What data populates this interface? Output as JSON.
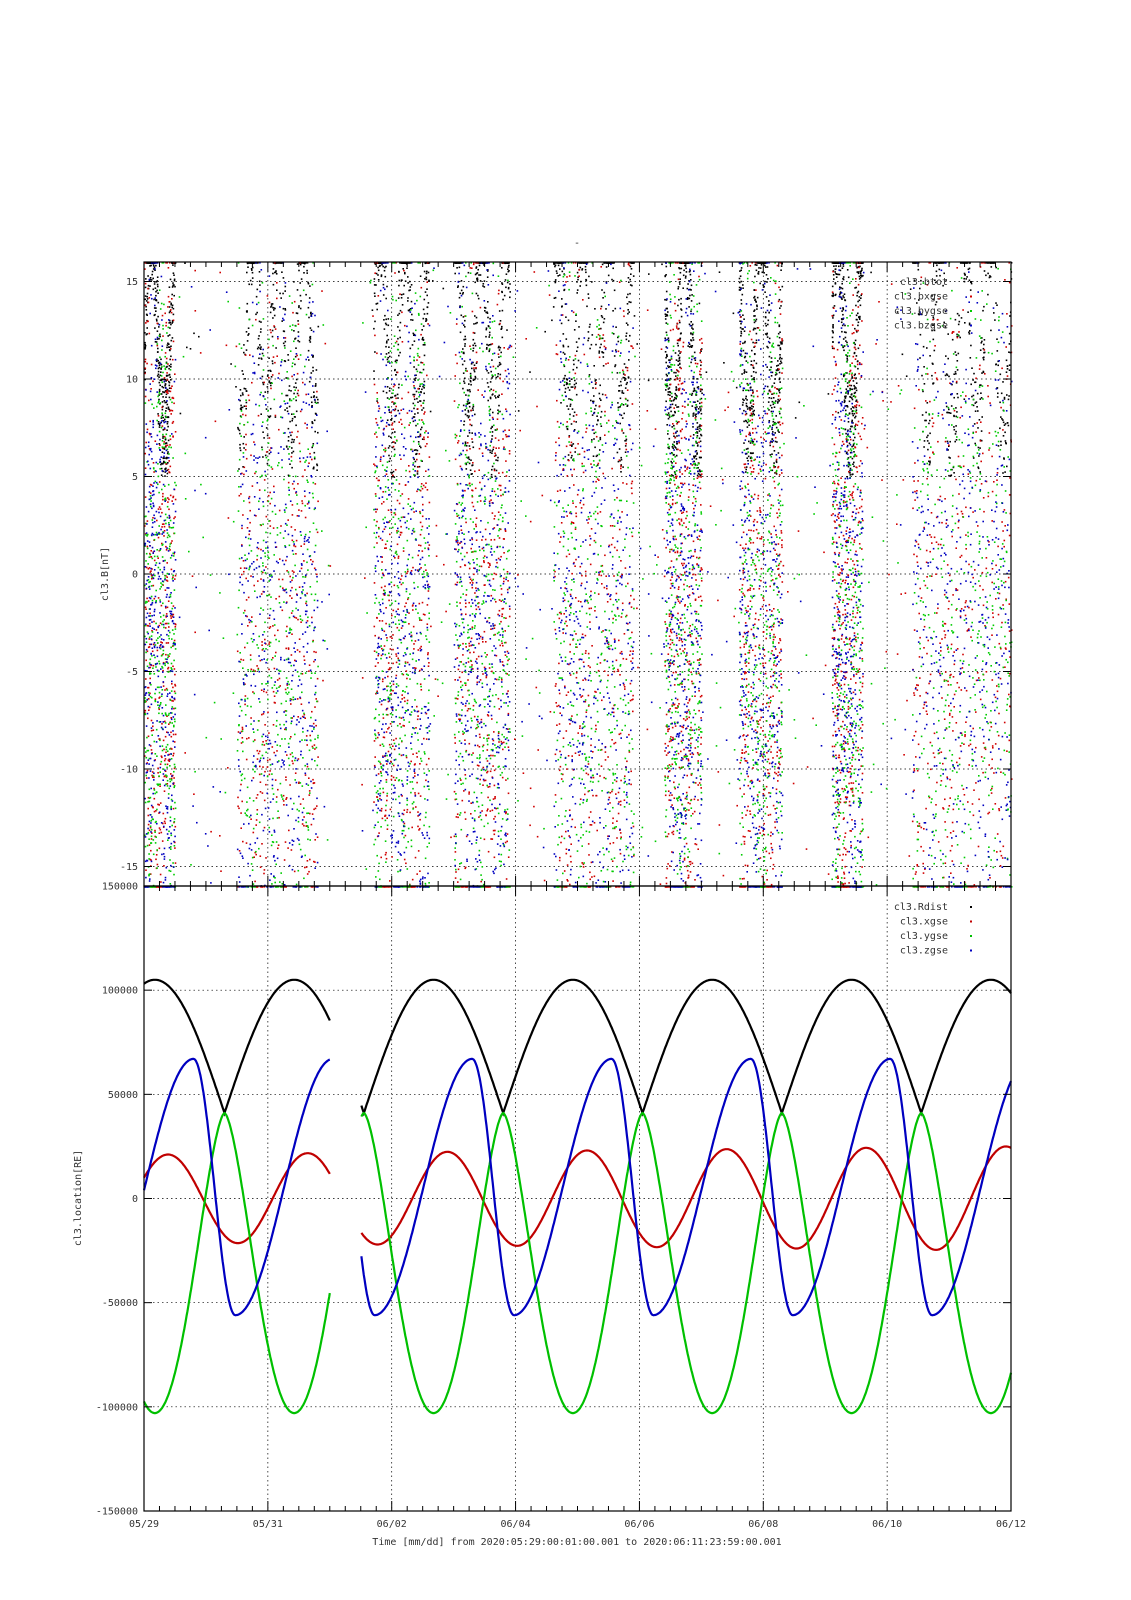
{
  "figure": {
    "top_title": "-",
    "xtitle": "Time [mm/dd]  from 2020:05:29:00:01:00.001  to  2020:06:11:23:59:00.001",
    "x_tick_labels": [
      "05/29",
      "05/31",
      "06/02",
      "06/04",
      "06/06",
      "06/08",
      "06/10",
      "06/12"
    ]
  },
  "chart_data": [
    {
      "type": "scatter",
      "title": "",
      "ylabel": "cl3.B[nT]",
      "xlabel": "",
      "x_unit": "days since 2020-05-29 00:00",
      "xlim": [
        0,
        14
      ],
      "ylim": [
        -16,
        16
      ],
      "yticks": [
        -15,
        -10,
        -5,
        0,
        5,
        10,
        15
      ],
      "grid": true,
      "legend_position": "top-right",
      "data_gaps": [
        [
          3.0,
          3.5
        ]
      ],
      "series": [
        {
          "name": "cl3.btot",
          "color": "#000000",
          "approx_points": [
            [
              0.2,
              14
            ],
            [
              1.9,
              14.5
            ],
            [
              2.3,
              13
            ],
            [
              4.9,
              13
            ],
            [
              5.8,
              14
            ],
            [
              7.2,
              9
            ],
            [
              9.2,
              13
            ],
            [
              13.5,
              14
            ]
          ]
        },
        {
          "name": "cl3.bxgse",
          "color": "#d00000",
          "approx_points": [
            [
              0.1,
              2
            ],
            [
              1.8,
              -6
            ],
            [
              2.3,
              2
            ],
            [
              4.3,
              -10
            ],
            [
              6.2,
              0
            ],
            [
              7.3,
              -9
            ],
            [
              11.2,
              4
            ],
            [
              13.7,
              8
            ]
          ]
        },
        {
          "name": "cl3.bygse",
          "color": "#00cc00",
          "approx_points": [
            [
              0.1,
              8
            ],
            [
              1.6,
              -12
            ],
            [
              2.5,
              -4
            ],
            [
              4.6,
              -6
            ],
            [
              6.0,
              -7
            ],
            [
              7.6,
              -5
            ],
            [
              11.0,
              -12
            ],
            [
              13.8,
              11
            ]
          ]
        },
        {
          "name": "cl3.bzgse",
          "color": "#0000c0",
          "approx_points": [
            [
              0.1,
              11
            ],
            [
              0.7,
              -12
            ],
            [
              2.8,
              -4
            ],
            [
              5.5,
              3
            ],
            [
              6.5,
              -8
            ],
            [
              7.1,
              -4
            ],
            [
              11.3,
              8
            ],
            [
              13.4,
              11
            ]
          ]
        }
      ]
    },
    {
      "type": "line",
      "title": "",
      "ylabel": "cl3.location[RE]",
      "xlabel": "Time [mm/dd]",
      "x_unit": "days since 2020-05-29 00:00",
      "xlim": [
        0,
        14
      ],
      "ylim": [
        -150000,
        150000
      ],
      "yticks": [
        -150000,
        -100000,
        -50000,
        0,
        50000,
        100000,
        150000
      ],
      "grid": true,
      "legend_position": "top-right",
      "data_gaps": [
        [
          3.0,
          3.5
        ]
      ],
      "orbit_period_days": 2.25,
      "series": [
        {
          "name": "cl3.Rdist",
          "color": "#000000",
          "max": 105000,
          "min": 41000,
          "perigee_time_day": 1.3
        },
        {
          "name": "cl3.xgse",
          "color": "#c00000",
          "amplitude_start": 21000,
          "amplitude_end": 25000,
          "value_at_x0": 10000
        },
        {
          "name": "cl3.ygse",
          "color": "#00c000",
          "max": 41000,
          "min": -103000,
          "max_time_day": 1.3
        },
        {
          "name": "cl3.zgse",
          "color": "#0000c0",
          "max": 67000,
          "min": -56000,
          "max_time_day": 0.8
        }
      ]
    }
  ]
}
